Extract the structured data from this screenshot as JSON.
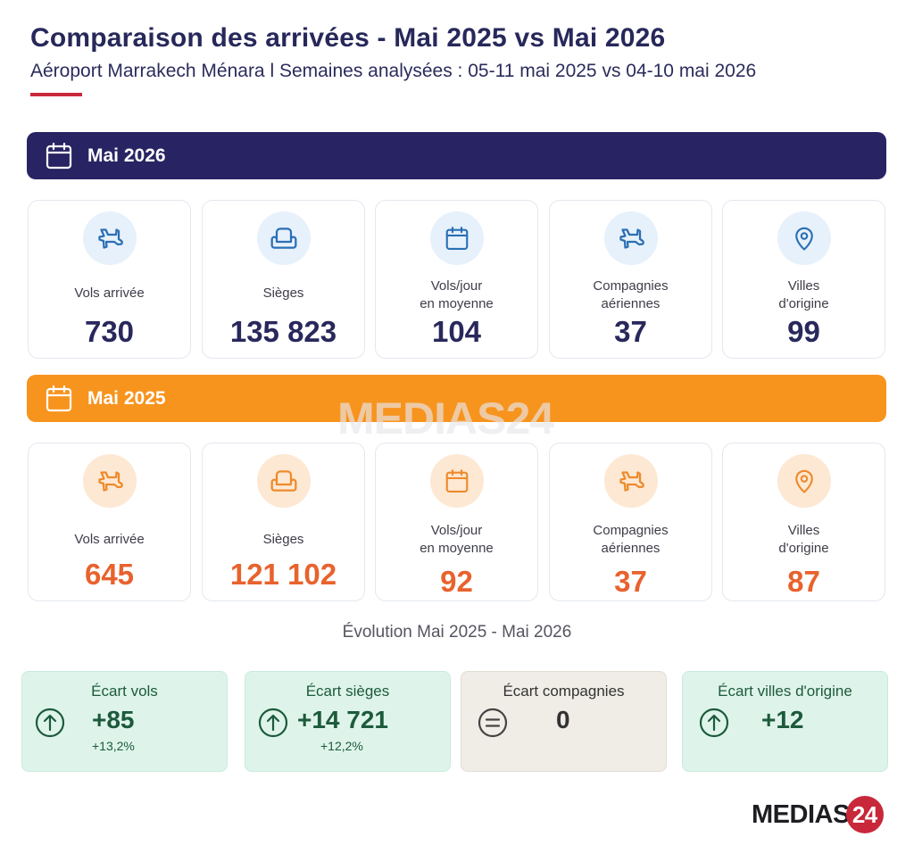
{
  "header": {
    "title": "Comparaison des arrivées - Mai 2025 vs Mai 2026",
    "subtitle": "Aéroport Marrakech Ménara  l  Semaines analysées : 05-11 mai 2025 vs 04-10 mai 2026"
  },
  "colors": {
    "navy": "#282463",
    "orange": "#f7941e",
    "value_orange": "#e8622d",
    "green": "#1d5a3c",
    "red_accent": "#c8283a"
  },
  "section_2026": {
    "label": "Mai 2026",
    "icon": "calendar-icon",
    "cards": [
      {
        "icon": "plane-icon",
        "label_line1": "Vols arrivée",
        "label_line2": "",
        "value": "730"
      },
      {
        "icon": "seat-icon",
        "label_line1": "Sièges",
        "label_line2": "",
        "value": "135 823"
      },
      {
        "icon": "calendar-icon",
        "label_line1": "Vols/jour",
        "label_line2": "en moyenne",
        "value": "104"
      },
      {
        "icon": "plane-icon",
        "label_line1": "Compagnies",
        "label_line2": "aériennes",
        "value": "37"
      },
      {
        "icon": "location-pin-icon",
        "label_line1": "Villes",
        "label_line2": "d'origine",
        "value": "99"
      }
    ]
  },
  "section_2025": {
    "label": "Mai 2025",
    "icon": "calendar-icon",
    "cards": [
      {
        "icon": "plane-icon",
        "label_line1": "Vols arrivée",
        "label_line2": "",
        "value": "645"
      },
      {
        "icon": "seat-icon",
        "label_line1": "Sièges",
        "label_line2": "",
        "value": "121 102"
      },
      {
        "icon": "calendar-icon",
        "label_line1": "Vols/jour",
        "label_line2": "en moyenne",
        "value": "92"
      },
      {
        "icon": "plane-icon",
        "label_line1": "Compagnies",
        "label_line2": "aériennes",
        "value": "37"
      },
      {
        "icon": "location-pin-icon",
        "label_line1": "Villes",
        "label_line2": "d'origine",
        "value": "87"
      }
    ]
  },
  "evolution": {
    "title": "Évolution Mai 2025 - Mai 2026",
    "items": [
      {
        "title": "Écart vols",
        "icon": "arrow-up-circle-icon",
        "value": "+85",
        "pct": "+13,2%"
      },
      {
        "title": "Écart sièges",
        "icon": "arrow-up-circle-icon",
        "value": "+14 721",
        "pct": "+12,2%"
      },
      {
        "title": "Écart compagnies",
        "icon": "equals-circle-icon",
        "value": "0",
        "pct": ""
      },
      {
        "title": "Écart villes d'origine",
        "icon": "arrow-up-circle-icon",
        "value": "+12",
        "pct": ""
      }
    ]
  },
  "branding": {
    "watermark": "MEDIAS24",
    "logo_text": "MEDIAS",
    "logo_number": "24"
  }
}
